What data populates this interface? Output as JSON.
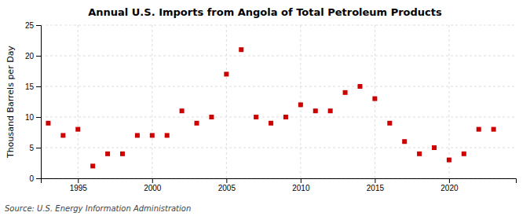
{
  "chart_data": {
    "type": "scatter",
    "title": "Annual U.S. Imports from Angola of Total Petroleum Products",
    "ylabel": "Thousand Barrels per Day",
    "source": "Source: U.S. Energy Information Administration",
    "x": [
      1993,
      1994,
      1995,
      1996,
      1997,
      1998,
      1999,
      2000,
      2001,
      2002,
      2003,
      2004,
      2005,
      2006,
      2007,
      2008,
      2009,
      2010,
      2011,
      2012,
      2013,
      2014,
      2015,
      2016,
      2017,
      2018,
      2019,
      2020,
      2021,
      2022,
      2023
    ],
    "values": [
      9,
      7,
      8,
      2,
      4,
      4,
      7,
      7,
      7,
      11,
      9,
      10,
      17,
      21,
      10,
      9,
      10,
      12,
      11,
      11,
      14,
      15,
      13,
      9,
      6,
      4,
      5,
      3,
      4,
      8,
      8
    ],
    "color": "#cc0000",
    "marker": "square",
    "xlim": [
      1992.5,
      2024.5
    ],
    "ylim": [
      0,
      25
    ],
    "xticks": [
      1995,
      2000,
      2005,
      2010,
      2015,
      2020
    ],
    "yticks": [
      0,
      5,
      10,
      15,
      20,
      25
    ],
    "grid": true
  }
}
